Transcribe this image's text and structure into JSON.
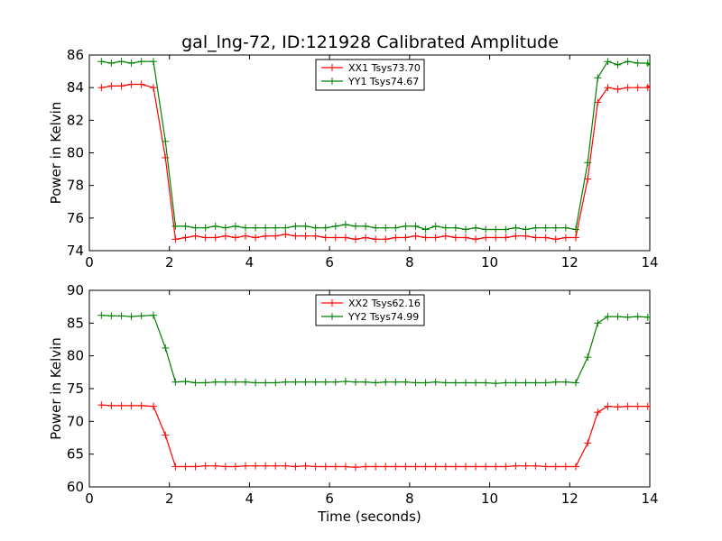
{
  "figure": {
    "title": "gal_lng-72, ID:121928 Calibrated Amplitude"
  },
  "chart_data": [
    {
      "type": "line",
      "title": "gal_lng-72, ID:121928 Calibrated Amplitude",
      "xlabel": "",
      "ylabel": "Power in Kelvin",
      "xlim": [
        0,
        14
      ],
      "ylim": [
        74,
        86
      ],
      "x_ticks": [
        0,
        2,
        4,
        6,
        8,
        10,
        12,
        14
      ],
      "y_ticks": [
        74,
        76,
        78,
        80,
        82,
        84,
        86
      ],
      "grid": false,
      "legend": "upper-center",
      "x": [
        0.3,
        0.55,
        0.8,
        1.05,
        1.3,
        1.6,
        1.9,
        2.15,
        2.4,
        2.65,
        2.9,
        3.15,
        3.4,
        3.65,
        3.9,
        4.15,
        4.4,
        4.65,
        4.9,
        5.15,
        5.4,
        5.65,
        5.9,
        6.15,
        6.4,
        6.65,
        6.9,
        7.15,
        7.4,
        7.65,
        7.9,
        8.15,
        8.4,
        8.65,
        8.9,
        9.15,
        9.4,
        9.65,
        9.9,
        10.15,
        10.4,
        10.65,
        10.9,
        11.15,
        11.4,
        11.65,
        11.9,
        12.15,
        12.45,
        12.7,
        12.95,
        13.2,
        13.45,
        13.7,
        13.95,
        14.0
      ],
      "series": [
        {
          "name": "XX1 Tsys73.70",
          "color": "#ff0000",
          "values": [
            84.0,
            84.1,
            84.1,
            84.2,
            84.2,
            84.0,
            79.7,
            74.7,
            74.8,
            74.9,
            74.8,
            74.8,
            74.9,
            74.8,
            74.9,
            74.8,
            74.9,
            74.9,
            75.0,
            74.9,
            74.9,
            74.9,
            74.8,
            74.8,
            74.8,
            74.7,
            74.8,
            74.7,
            74.7,
            74.8,
            74.8,
            74.9,
            74.8,
            74.8,
            74.9,
            74.8,
            74.8,
            74.7,
            74.8,
            74.8,
            74.8,
            74.9,
            74.9,
            74.8,
            74.8,
            74.7,
            74.8,
            74.8,
            78.4,
            83.1,
            84.0,
            83.9,
            84.0,
            84.0,
            84.0,
            84.1
          ]
        },
        {
          "name": "YY1 Tsys74.67",
          "color": "#008000",
          "values": [
            85.6,
            85.5,
            85.6,
            85.5,
            85.6,
            85.6,
            80.7,
            75.5,
            75.5,
            75.4,
            75.4,
            75.5,
            75.4,
            75.5,
            75.4,
            75.4,
            75.4,
            75.4,
            75.4,
            75.5,
            75.5,
            75.4,
            75.4,
            75.5,
            75.6,
            75.5,
            75.5,
            75.4,
            75.4,
            75.4,
            75.5,
            75.5,
            75.3,
            75.5,
            75.4,
            75.4,
            75.3,
            75.4,
            75.3,
            75.3,
            75.3,
            75.4,
            75.3,
            75.4,
            75.4,
            75.4,
            75.4,
            75.3,
            79.4,
            84.6,
            85.6,
            85.4,
            85.6,
            85.5,
            85.5,
            85.4
          ]
        }
      ]
    },
    {
      "type": "line",
      "title": "",
      "xlabel": "Time (seconds)",
      "ylabel": "Power in Kelvin",
      "xlim": [
        0,
        14
      ],
      "ylim": [
        60,
        90
      ],
      "x_ticks": [
        0,
        2,
        4,
        6,
        8,
        10,
        12,
        14
      ],
      "y_ticks": [
        60,
        65,
        70,
        75,
        80,
        85,
        90
      ],
      "grid": false,
      "legend": "upper-center",
      "x": [
        0.3,
        0.55,
        0.8,
        1.05,
        1.3,
        1.6,
        1.9,
        2.15,
        2.4,
        2.65,
        2.9,
        3.15,
        3.4,
        3.65,
        3.9,
        4.15,
        4.4,
        4.65,
        4.9,
        5.15,
        5.4,
        5.65,
        5.9,
        6.15,
        6.4,
        6.65,
        6.9,
        7.15,
        7.4,
        7.65,
        7.9,
        8.15,
        8.4,
        8.65,
        8.9,
        9.15,
        9.4,
        9.65,
        9.9,
        10.15,
        10.4,
        10.65,
        10.9,
        11.15,
        11.4,
        11.65,
        11.9,
        12.15,
        12.45,
        12.7,
        12.95,
        13.2,
        13.45,
        13.7,
        13.95,
        14.0
      ],
      "series": [
        {
          "name": "XX2 Tsys62.16",
          "color": "#ff0000",
          "values": [
            72.5,
            72.4,
            72.4,
            72.4,
            72.4,
            72.3,
            67.9,
            63.1,
            63.1,
            63.1,
            63.2,
            63.2,
            63.1,
            63.1,
            63.2,
            63.2,
            63.2,
            63.2,
            63.2,
            63.1,
            63.2,
            63.1,
            63.1,
            63.1,
            63.1,
            63.0,
            63.1,
            63.1,
            63.1,
            63.1,
            63.1,
            63.1,
            63.1,
            63.1,
            63.1,
            63.1,
            63.1,
            63.1,
            63.1,
            63.1,
            63.1,
            63.2,
            63.2,
            63.2,
            63.1,
            63.1,
            63.1,
            63.1,
            66.7,
            71.4,
            72.3,
            72.2,
            72.3,
            72.3,
            72.3,
            72.3
          ]
        },
        {
          "name": "YY2 Tsys74.99",
          "color": "#008000",
          "values": [
            86.2,
            86.1,
            86.1,
            86.0,
            86.1,
            86.2,
            81.2,
            76.0,
            76.1,
            75.9,
            75.9,
            76.0,
            76.0,
            76.0,
            76.0,
            75.9,
            75.9,
            75.9,
            76.0,
            76.0,
            76.0,
            76.0,
            76.0,
            76.0,
            76.1,
            76.0,
            76.0,
            75.9,
            76.0,
            76.0,
            76.0,
            75.9,
            75.9,
            76.0,
            75.9,
            75.9,
            75.9,
            75.9,
            75.9,
            75.8,
            75.9,
            75.9,
            75.9,
            75.9,
            75.9,
            76.0,
            76.0,
            75.9,
            79.8,
            85.0,
            86.0,
            86.0,
            85.9,
            86.0,
            85.9,
            85.9
          ]
        }
      ]
    }
  ]
}
